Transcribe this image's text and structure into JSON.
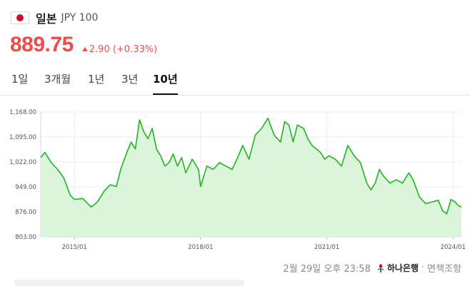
{
  "header": {
    "flag_icon": "japan-flag-icon",
    "country": "일본",
    "pair": "JPY 100"
  },
  "quote": {
    "price": "889.75",
    "change": "2.90 (+0.33%)",
    "direction": "up",
    "color": "#f04b4b"
  },
  "tabs": [
    {
      "label": "1일",
      "active": false
    },
    {
      "label": "3개월",
      "active": false
    },
    {
      "label": "1년",
      "active": false
    },
    {
      "label": "3년",
      "active": false
    },
    {
      "label": "10년",
      "active": true
    }
  ],
  "chart_data": {
    "type": "area",
    "line_color": "#21b321",
    "fill_color": "#daf5da",
    "ylim": [
      803,
      1168
    ],
    "y_ticks": [
      "1,168.00",
      "1,095.00",
      "1,022.00",
      "949.00",
      "876.00",
      "803.00"
    ],
    "y_tick_values": [
      1168,
      1095,
      1022,
      949,
      876,
      803
    ],
    "x_ticks": [
      "2015/01",
      "2018/01",
      "2021/01",
      "2024/01"
    ],
    "x_tick_years": [
      2015,
      2018,
      2021,
      2024
    ],
    "x_range": [
      2014.2,
      2024.2
    ],
    "grid": true,
    "series": [
      {
        "x": [
          2014.2,
          2014.3,
          2014.45,
          2014.6,
          2014.75,
          2014.9,
          2015.0,
          2015.2,
          2015.4,
          2015.55,
          2015.7,
          2015.85,
          2016.0,
          2016.1,
          2016.25,
          2016.35,
          2016.45,
          2016.55,
          2016.65,
          2016.75,
          2016.85,
          2016.95,
          2017.05,
          2017.15,
          2017.25,
          2017.35,
          2017.45,
          2017.55,
          2017.65,
          2017.8,
          2017.95,
          2018.0,
          2018.15,
          2018.3,
          2018.45,
          2018.6,
          2018.75,
          2018.9,
          2019.0,
          2019.15,
          2019.3,
          2019.45,
          2019.6,
          2019.75,
          2019.9,
          2020.0,
          2020.1,
          2020.2,
          2020.3,
          2020.45,
          2020.55,
          2020.65,
          2020.75,
          2020.85,
          2020.95,
          2021.05,
          2021.2,
          2021.35,
          2021.5,
          2021.65,
          2021.8,
          2021.95,
          2022.05,
          2022.15,
          2022.25,
          2022.35,
          2022.5,
          2022.65,
          2022.8,
          2022.95,
          2023.05,
          2023.2,
          2023.35,
          2023.5,
          2023.65,
          2023.75,
          2023.85,
          2023.95,
          2024.05,
          2024.12,
          2024.2
        ],
        "y": [
          1035,
          1050,
          1020,
          1000,
          975,
          925,
          912,
          915,
          890,
          905,
          935,
          955,
          950,
          1000,
          1050,
          1080,
          1060,
          1145,
          1110,
          1090,
          1120,
          1060,
          1040,
          1010,
          1020,
          1045,
          1010,
          1035,
          990,
          1030,
          1000,
          950,
          1010,
          1000,
          1020,
          1010,
          1000,
          1040,
          1070,
          1030,
          1100,
          1120,
          1150,
          1100,
          1080,
          1140,
          1130,
          1080,
          1130,
          1120,
          1090,
          1070,
          1060,
          1050,
          1030,
          1040,
          1030,
          1010,
          1070,
          1040,
          1020,
          960,
          940,
          960,
          1000,
          980,
          960,
          970,
          960,
          990,
          970,
          920,
          900,
          905,
          910,
          880,
          870,
          912,
          905,
          895,
          890
        ]
      }
    ]
  },
  "footer": {
    "timestamp": "2월 29일 오후 23:58",
    "bank_icon": "hana-bank-logo-icon",
    "bank": "하나은행",
    "separator": "·",
    "disclaimer": "면책조항"
  }
}
